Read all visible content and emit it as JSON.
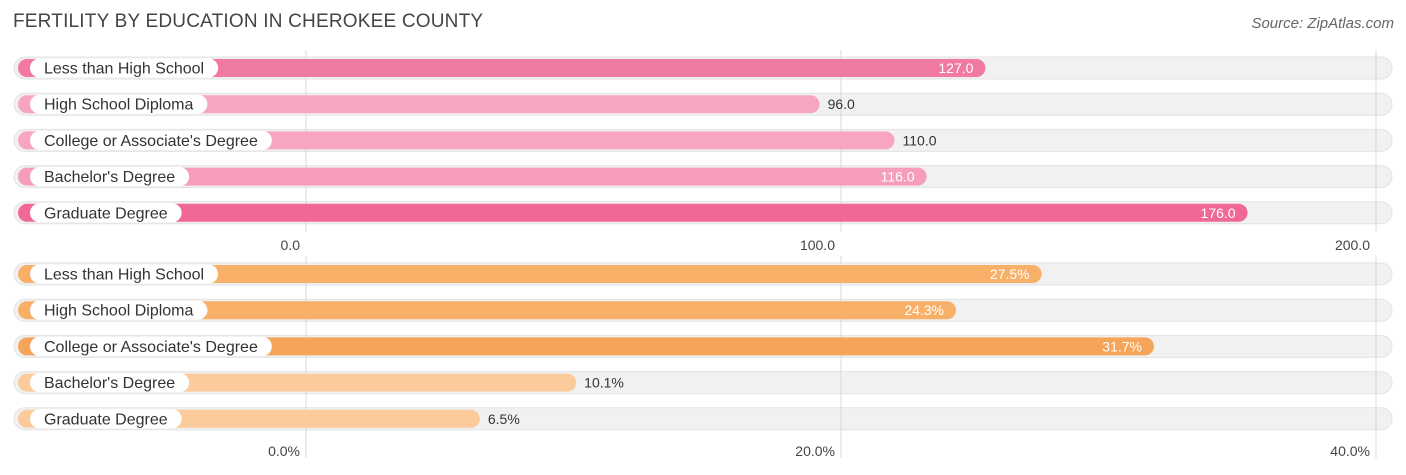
{
  "header": {
    "title": "FERTILITY BY EDUCATION IN CHEROKEE COUNTY",
    "source": "Source: ZipAtlas.com"
  },
  "chart_data": [
    {
      "type": "bar",
      "orientation": "horizontal",
      "categories": [
        "Less than High School",
        "High School Diploma",
        "College or Associate's Degree",
        "Bachelor's Degree",
        "Graduate Degree"
      ],
      "values": [
        127.0,
        96.0,
        110.0,
        116.0,
        176.0
      ],
      "value_labels": [
        "127.0",
        "96.0",
        "110.0",
        "116.0",
        "176.0"
      ],
      "xlim": [
        0,
        200
      ],
      "ticks": [
        0,
        100,
        200
      ],
      "tick_labels": [
        "0.0",
        "100.0",
        "200.0"
      ],
      "colors": [
        "#f07aa2",
        "#f7a5c0",
        "#f7a5c0",
        "#f59dbb",
        "#f06895"
      ],
      "grid": true
    },
    {
      "type": "bar",
      "orientation": "horizontal",
      "categories": [
        "Less than High School",
        "High School Diploma",
        "College or Associate's Degree",
        "Bachelor's Degree",
        "Graduate Degree"
      ],
      "values": [
        27.5,
        24.3,
        31.7,
        10.1,
        6.5
      ],
      "value_labels": [
        "27.5%",
        "24.3%",
        "31.7%",
        "10.1%",
        "6.5%"
      ],
      "xlim": [
        0,
        40
      ],
      "ticks": [
        0,
        20,
        40
      ],
      "tick_labels": [
        "0.0%",
        "20.0%",
        "40.0%"
      ],
      "colors": [
        "#f8b068",
        "#f8b068",
        "#f5a559",
        "#fbcb9c",
        "#fbcb9c"
      ],
      "grid": true
    }
  ]
}
